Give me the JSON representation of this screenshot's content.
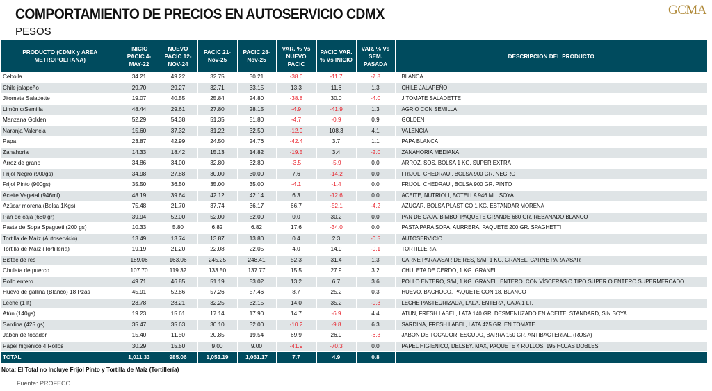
{
  "header": {
    "title": "COMPORTAMIENTO DE PRECIOS EN AUTOSERVICIO CDMX",
    "subtitle": "PESOS",
    "logo": "GCMA"
  },
  "table": {
    "columns": [
      "PRODUCTO (CDMX y AREA METROPOLITANA)",
      "INICIO PACIC 4-MAY-22",
      "NUEVO PACIC 12-NOV-24",
      "PACIC 21-Nov-25",
      "PACIC 28-Nov-25",
      "VAR. % Vs NUEVO PACIC",
      "PACIC VAR. % Vs INICIO",
      "VAR. % Vs SEM. PASADA",
      "DESCRIPCION DEL PRODUCTO"
    ],
    "rows": [
      [
        "Cebolla",
        "34.21",
        "49.22",
        "32.75",
        "30.21",
        "-38.6",
        "-11.7",
        "-7.8",
        "BLANCA"
      ],
      [
        "Chile jalapeño",
        "29.70",
        "29.27",
        "32.71",
        "33.15",
        "13.3",
        "11.6",
        "1.3",
        "CHILE JALAPEÑO"
      ],
      [
        "Jitomate Saladette",
        "19.07",
        "40.55",
        "25.84",
        "24.80",
        "-38.8",
        "30.0",
        "-4.0",
        "JITOMATE SALADETTE"
      ],
      [
        "Limón c/Semilla",
        "48.44",
        "29.61",
        "27.80",
        "28.15",
        "-4.9",
        "-41.9",
        "1.3",
        "AGRIO CON SEMILLA"
      ],
      [
        "Manzana Golden",
        "52.29",
        "54.38",
        "51.35",
        "51.80",
        "-4.7",
        "-0.9",
        "0.9",
        "GOLDEN"
      ],
      [
        "Naranja Valencia",
        "15.60",
        "37.32",
        "31.22",
        "32.50",
        "-12.9",
        "108.3",
        "4.1",
        "VALENCIA"
      ],
      [
        "Papa",
        "23.87",
        "42.99",
        "24.50",
        "24.76",
        "-42.4",
        "3.7",
        "1.1",
        "PAPA BLANCA"
      ],
      [
        "Zanahoria",
        "14.33",
        "18.42",
        "15.13",
        "14.82",
        "-19.5",
        "3.4",
        "-2.0",
        "ZANAHORIA MEDIANA"
      ],
      [
        "Arroz de grano",
        "34.86",
        "34.00",
        "32.80",
        "32.80",
        "-3.5",
        "-5.9",
        "0.0",
        "ARROZ, SOS, BOLSA 1 KG. SUPER EXTRA"
      ],
      [
        "Frijol Negro (900gs)",
        "34.98",
        "27.88",
        "30.00",
        "30.00",
        "7.6",
        "-14.2",
        "0.0",
        "FRIJOL, CHEDRAUI, BOLSA 900 GR. NEGRO"
      ],
      [
        "Frijol Pinto (900gs)",
        "35.50",
        "36.50",
        "35.00",
        "35.00",
        "-4.1",
        "-1.4",
        "0.0",
        "FRIJOL, CHEDRAUI, BOLSA 900 GR. PINTO"
      ],
      [
        "Aceite Vegetal (946ml)",
        "48.19",
        "39.64",
        "42.12",
        "42.14",
        "6.3",
        "-12.6",
        "0.0",
        "ACEITE, NUTRIOLI, BOTELLA 946 ML. SOYA"
      ],
      [
        "Azúcar morena (Bolsa 1Kgs)",
        "75.48",
        "21.70",
        "37.74",
        "36.17",
        "66.7",
        "-52.1",
        "-4.2",
        "AZUCAR, BOLSA PLASTICO 1 KG. ESTANDAR MORENA"
      ],
      [
        "Pan de caja (680 gr)",
        "39.94",
        "52.00",
        "52.00",
        "52.00",
        "0.0",
        "30.2",
        "0.0",
        "PAN DE CAJA, BIMBO, PAQUETE GRANDE 680 GR. REBANADO BLANCO"
      ],
      [
        "Pasta de Sopa Spagueti (200 gs)",
        "10.33",
        "5.80",
        "6.82",
        "6.82",
        "17.6",
        "-34.0",
        "0.0",
        "PASTA PARA SOPA, AURRERA, PAQUETE 200 GR. SPAGHETTI"
      ],
      [
        "Tortilla de Maíz (Autoservicio)",
        "13.49",
        "13.74",
        "13.87",
        "13.80",
        "0.4",
        "2.3",
        "-0.5",
        "AUTOSERVICIO"
      ],
      [
        "Tortilla de Maíz (Tortillería)",
        "19.19",
        "21.20",
        "22.08",
        "22.05",
        "4.0",
        "14.9",
        "-0.1",
        "TORTILLERIA"
      ],
      [
        "Bistec de res",
        "189.06",
        "163.06",
        "245.25",
        "248.41",
        "52.3",
        "31.4",
        "1.3",
        "CARNE PARA ASAR DE RES, S/M, 1 KG. GRANEL. CARNE PARA ASAR"
      ],
      [
        "Chuleta de puerco",
        "107.70",
        "119.32",
        "133.50",
        "137.77",
        "15.5",
        "27.9",
        "3.2",
        "CHULETA DE CERDO, 1 KG. GRANEL"
      ],
      [
        "Pollo entero",
        "49.71",
        "46.85",
        "51.19",
        "53.02",
        "13.2",
        "6.7",
        "3.6",
        "POLLO ENTERO, S/M, 1 KG. GRANEL. ENTERO. CON VÍSCERAS O TIPO SUPER O ENTERO SUPERMERCADO"
      ],
      [
        "Huevo de gallina (Blanco) 18 Pzas",
        "45.91",
        "52.86",
        "57.26",
        "57.46",
        "8.7",
        "25.2",
        "0.3",
        "HUEVO, BACHOCO, PAQUETE CON 18. BLANCO"
      ],
      [
        "Leche (1 lt)",
        "23.78",
        "28.21",
        "32.25",
        "32.15",
        "14.0",
        "35.2",
        "-0.3",
        "LECHE PASTEURIZADA, LALA. ENTERA, CAJA 1 LT."
      ],
      [
        "Atún (140gs)",
        "19.23",
        "15.61",
        "17.14",
        "17.90",
        "14.7",
        "-6.9",
        "4.4",
        "ATUN, FRESH LABEL, LATA 140 GR. DESMENUZADO EN ACEITE. STANDARD, SIN SOYA"
      ],
      [
        "Sardina (425 gs)",
        "35.47",
        "35.63",
        "30.10",
        "32.00",
        "-10.2",
        "-9.8",
        "6.3",
        "SARDINA, FRESH LABEL, LATA 425 GR. EN TOMATE"
      ],
      [
        "Jabon de tocador",
        "15.40",
        "11.50",
        "20.85",
        "19.54",
        "69.9",
        "26.9",
        "-6.3",
        "JABON DE TOCADOR, ESCUDO, BARRA 150 GR. ANTIBACTERIAL. (ROSA)"
      ],
      [
        "Papel higiénico 4 Rollos",
        "30.29",
        "15.50",
        "9.00",
        "9.00",
        "-41.9",
        "-70.3",
        "0.0",
        "PAPEL HIGIENICO, DELSEY. MAX, PAQUETE 4 ROLLOS. 195 HOJAS DOBLES"
      ]
    ],
    "total": [
      "TOTAL",
      "1,011.33",
      "985.06",
      "1,053.19",
      "1,061.17",
      "7.7",
      "4.9",
      "0.8",
      ""
    ]
  },
  "footer": {
    "note": "Nota: El Total no Incluye Frijol Pinto y Tortilla de Maíz (Tortillería)",
    "source": "Fuente: PROFECO"
  },
  "colors": {
    "header_bg": "#004b5e",
    "negative": "#e8202a",
    "stripe": "#dfe4e6",
    "logo": "#b08a3a"
  }
}
